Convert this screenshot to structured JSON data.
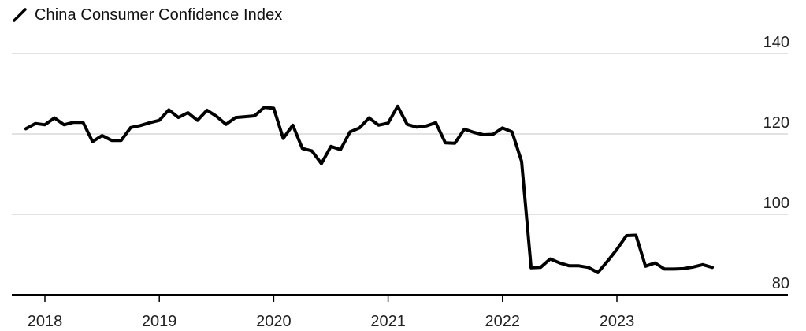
{
  "chart_data": {
    "type": "line",
    "title": "",
    "xlabel": "",
    "ylabel": "",
    "ylim": [
      80,
      140
    ],
    "y_ticks": [
      80,
      100,
      120,
      140
    ],
    "y_axis_side": "right",
    "grid": true,
    "legend": "top-left",
    "x_ticks": [
      "2018",
      "2019",
      "2020",
      "2021",
      "2022",
      "2023"
    ],
    "series": [
      {
        "name": "China Consumer Confidence Index",
        "color": "#000000",
        "x": [
          "2017-11",
          "2017-12",
          "2018-01",
          "2018-02",
          "2018-03",
          "2018-04",
          "2018-05",
          "2018-06",
          "2018-07",
          "2018-08",
          "2018-09",
          "2018-10",
          "2018-11",
          "2018-12",
          "2019-01",
          "2019-02",
          "2019-03",
          "2019-04",
          "2019-05",
          "2019-06",
          "2019-07",
          "2019-08",
          "2019-09",
          "2019-10",
          "2019-11",
          "2019-12",
          "2020-01",
          "2020-02",
          "2020-03",
          "2020-04",
          "2020-05",
          "2020-06",
          "2020-07",
          "2020-08",
          "2020-09",
          "2020-10",
          "2020-11",
          "2020-12",
          "2021-01",
          "2021-02",
          "2021-03",
          "2021-04",
          "2021-05",
          "2021-06",
          "2021-07",
          "2021-08",
          "2021-09",
          "2021-10",
          "2021-11",
          "2021-12",
          "2022-01",
          "2022-02",
          "2022-03",
          "2022-04",
          "2022-05",
          "2022-06",
          "2022-07",
          "2022-08",
          "2022-09",
          "2022-10",
          "2022-11",
          "2022-12",
          "2023-01",
          "2023-02",
          "2023-03",
          "2023-04",
          "2023-05",
          "2023-06",
          "2023-07",
          "2023-08",
          "2023-09",
          "2023-10",
          "2023-11"
        ],
        "values": [
          121.3,
          122.6,
          122.3,
          124.0,
          122.3,
          122.9,
          122.9,
          118.1,
          119.6,
          118.4,
          118.4,
          121.6,
          122.1,
          122.8,
          123.4,
          126.0,
          124.1,
          125.3,
          123.4,
          125.9,
          124.4,
          122.4,
          124.1,
          124.3,
          124.5,
          126.6,
          126.4,
          118.9,
          122.2,
          116.4,
          115.8,
          112.6,
          116.9,
          116.1,
          120.5,
          121.5,
          124.0,
          122.2,
          122.7,
          126.9,
          122.4,
          121.7,
          122.0,
          122.8,
          117.8,
          117.7,
          121.2,
          120.4,
          119.8,
          119.9,
          121.5,
          120.5,
          113.2,
          86.7,
          86.8,
          88.9,
          87.9,
          87.2,
          87.2,
          86.8,
          85.5,
          88.3,
          91.3,
          94.7,
          94.8,
          87.1,
          87.9,
          86.4,
          86.4,
          86.5,
          86.9,
          87.5,
          86.8
        ]
      }
    ]
  }
}
